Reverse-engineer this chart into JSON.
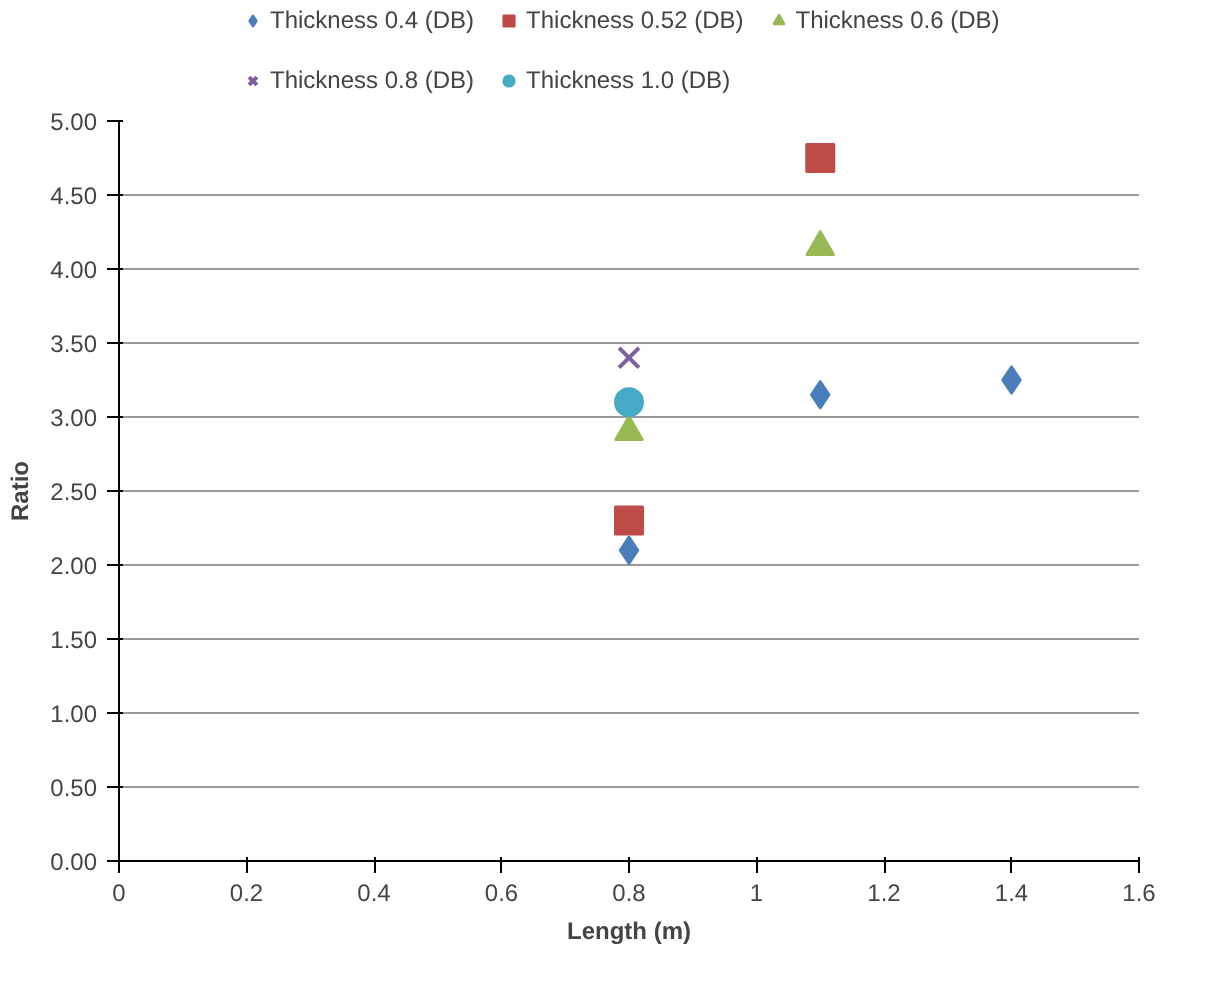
{
  "chart_data": {
    "type": "scatter",
    "xlabel": "Length (m)",
    "ylabel": "Ratio",
    "xlim": [
      0,
      1.6
    ],
    "xticks": [
      0,
      0.2,
      0.4,
      0.6,
      0.8,
      1,
      1.2,
      1.4,
      1.6
    ],
    "ylim": [
      0,
      5
    ],
    "yticks": [
      {
        "value": 0,
        "label": "0.00"
      },
      {
        "value": 0.5,
        "label": "0.50"
      },
      {
        "value": 1,
        "label": "1.00"
      },
      {
        "value": 1.5,
        "label": "1.50"
      },
      {
        "value": 2,
        "label": "2.00"
      },
      {
        "value": 2.5,
        "label": "2.50"
      },
      {
        "value": 3,
        "label": "3.00"
      },
      {
        "value": 3.5,
        "label": "3.50"
      },
      {
        "value": 4,
        "label": "4.00"
      },
      {
        "value": 4.5,
        "label": "4.50"
      },
      {
        "value": 5,
        "label": "5.00"
      }
    ],
    "grid": "y",
    "legend": "top",
    "series": [
      {
        "name": "Thickness 0.4 (DB)",
        "color": "#4a7ebb",
        "marker": "diamond",
        "x": [
          0.8,
          1.1,
          1.4
        ],
        "values": [
          2.1,
          3.15,
          3.25
        ]
      },
      {
        "name": "Thickness 0.52 (DB)",
        "color": "#be4b48",
        "marker": "square",
        "x": [
          0.8,
          1.1
        ],
        "values": [
          2.3,
          4.75
        ]
      },
      {
        "name": "Thickness 0.6 (DB)",
        "color": "#98b954",
        "marker": "triangle",
        "x": [
          0.8,
          1.1
        ],
        "values": [
          2.9,
          4.15
        ]
      },
      {
        "name": "Thickness 0.8 (DB)",
        "color": "#7d60a0",
        "marker": "cross",
        "x": [
          0.8
        ],
        "values": [
          3.4
        ]
      },
      {
        "name": "Thickness 1.0 (DB)",
        "color": "#46aac5",
        "marker": "circle",
        "x": [
          0.8
        ],
        "values": [
          3.1
        ]
      }
    ]
  }
}
